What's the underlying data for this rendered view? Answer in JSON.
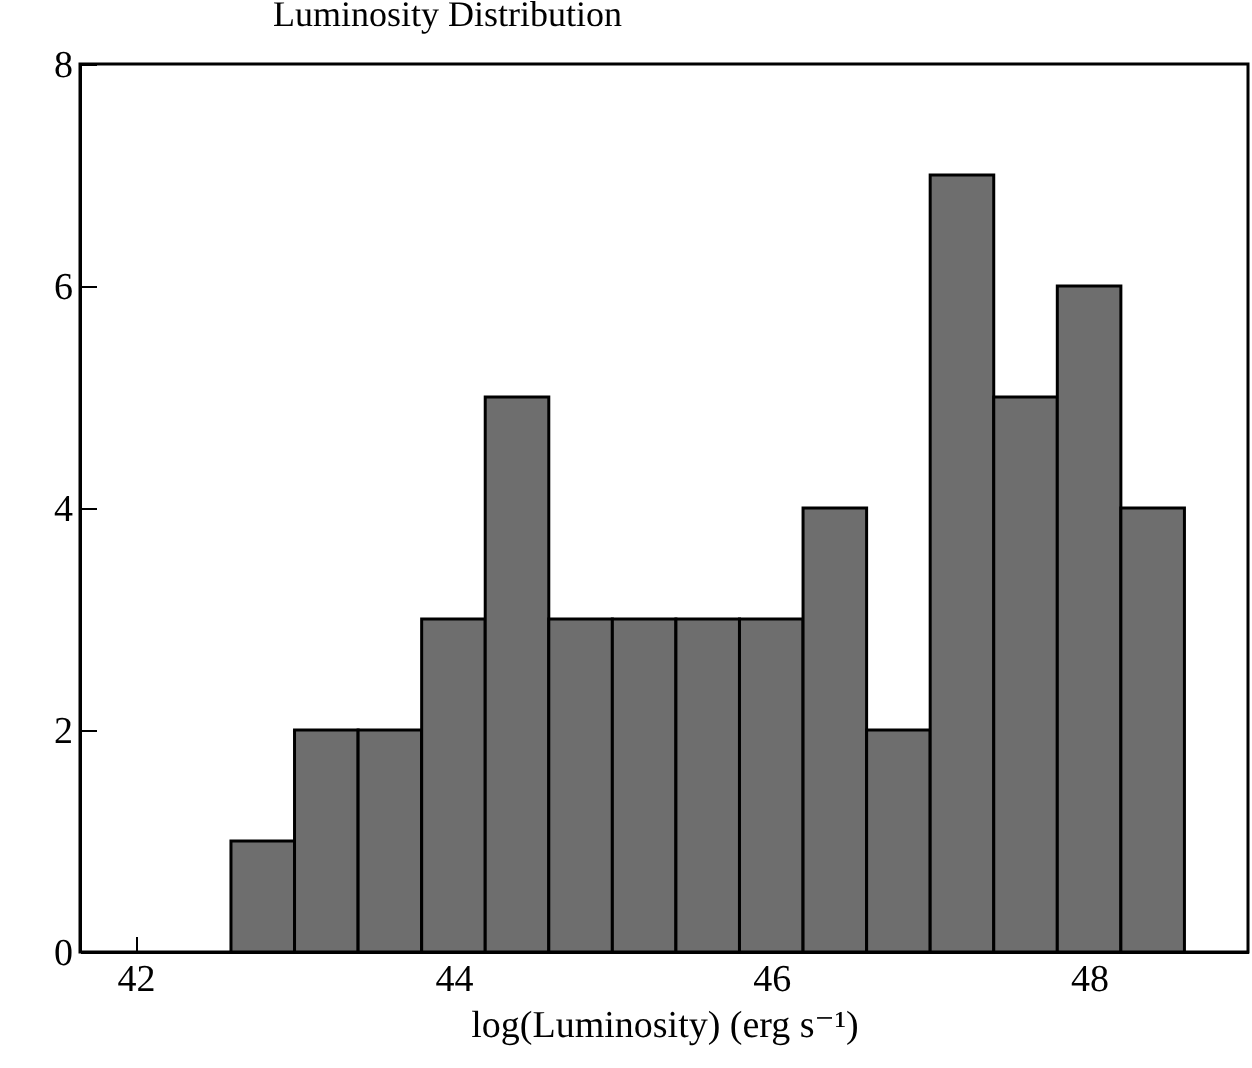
{
  "chart_data": {
    "type": "histogram",
    "title": "Luminosity Distribution",
    "xlabel": "log(Luminosity) (erg s⁻¹)",
    "bins": [
      42.6,
      43.0,
      43.4,
      43.8,
      44.2,
      44.6,
      45.0,
      45.4,
      45.8,
      46.2,
      46.6,
      47.0,
      47.4,
      47.8,
      48.2,
      48.6
    ],
    "values": [
      1,
      2,
      2,
      3,
      5,
      3,
      3,
      3,
      3,
      4,
      2,
      7,
      5,
      6,
      4
    ],
    "color": "#6e6e6e",
    "xlim": [
      41.65,
      49.0
    ],
    "ylim": [
      0,
      8
    ],
    "xticks": [
      42,
      44,
      46,
      48
    ],
    "yticks": [
      0,
      2,
      4,
      6,
      8
    ],
    "grid": false
  }
}
